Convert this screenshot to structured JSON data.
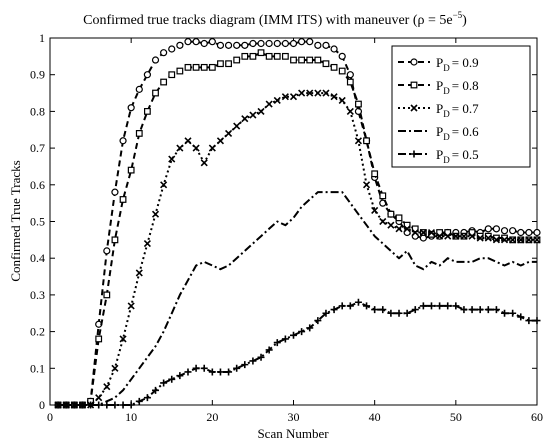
{
  "chart_data": {
    "type": "line",
    "title": "Confirmed true tracks diagram (IMM ITS) with maneuver (ρ = 5e",
    "title_superscript": "−5",
    "title_suffix": ")",
    "xlabel": "Scan Number",
    "ylabel": "Confirmed True Tracks",
    "xlim": [
      0,
      60
    ],
    "ylim": [
      0,
      1
    ],
    "xticks": [
      "0",
      "10",
      "20",
      "30",
      "40",
      "50",
      "60"
    ],
    "yticks": [
      "0",
      "0.1",
      "0.2",
      "0.3",
      "0.4",
      "0.5",
      "0.6",
      "0.7",
      "0.8",
      "0.9",
      "1"
    ],
    "grid": false,
    "legend_position": "top-right",
    "series": [
      {
        "name": "= 0.9",
        "name_prefix": "P",
        "name_sub": "D",
        "style": "dashed",
        "marker": "circle",
        "x": [
          1,
          2,
          3,
          4,
          5,
          6,
          7,
          8,
          9,
          10,
          11,
          12,
          13,
          14,
          15,
          16,
          17,
          18,
          19,
          20,
          21,
          22,
          23,
          24,
          25,
          26,
          27,
          28,
          29,
          30,
          31,
          32,
          33,
          34,
          35,
          36,
          37,
          38,
          39,
          40,
          41,
          42,
          43,
          44,
          45,
          46,
          47,
          48,
          49,
          50,
          51,
          52,
          53,
          54,
          55,
          56,
          57,
          58,
          59,
          60
        ],
        "y": [
          0,
          0,
          0,
          0,
          0.01,
          0.22,
          0.42,
          0.58,
          0.72,
          0.81,
          0.86,
          0.9,
          0.94,
          0.96,
          0.97,
          0.98,
          0.99,
          0.99,
          0.985,
          0.99,
          0.98,
          0.98,
          0.98,
          0.98,
          0.985,
          0.985,
          0.985,
          0.985,
          0.985,
          0.985,
          0.99,
          0.99,
          0.98,
          0.98,
          0.97,
          0.95,
          0.9,
          0.8,
          0.72,
          0.62,
          0.55,
          0.52,
          0.5,
          0.47,
          0.46,
          0.455,
          0.46,
          0.46,
          0.47,
          0.47,
          0.47,
          0.475,
          0.47,
          0.48,
          0.48,
          0.475,
          0.475,
          0.47,
          0.47,
          0.47
        ]
      },
      {
        "name": "= 0.8",
        "name_prefix": "P",
        "name_sub": "D",
        "style": "dashed",
        "marker": "square",
        "x": [
          1,
          2,
          3,
          4,
          5,
          6,
          7,
          8,
          9,
          10,
          11,
          12,
          13,
          14,
          15,
          16,
          17,
          18,
          19,
          20,
          21,
          22,
          23,
          24,
          25,
          26,
          27,
          28,
          29,
          30,
          31,
          32,
          33,
          34,
          35,
          36,
          37,
          38,
          39,
          40,
          41,
          42,
          43,
          44,
          45,
          46,
          47,
          48,
          49,
          50,
          51,
          52,
          53,
          54,
          55,
          56,
          57,
          58,
          59,
          60
        ],
        "y": [
          0,
          0,
          0,
          0,
          0.01,
          0.18,
          0.3,
          0.45,
          0.56,
          0.64,
          0.74,
          0.8,
          0.85,
          0.88,
          0.9,
          0.91,
          0.92,
          0.92,
          0.92,
          0.92,
          0.93,
          0.93,
          0.94,
          0.95,
          0.95,
          0.96,
          0.95,
          0.95,
          0.95,
          0.94,
          0.94,
          0.94,
          0.94,
          0.93,
          0.92,
          0.91,
          0.88,
          0.82,
          0.72,
          0.63,
          0.57,
          0.52,
          0.51,
          0.49,
          0.48,
          0.47,
          0.465,
          0.47,
          0.47,
          0.46,
          0.46,
          0.47,
          0.46,
          0.46,
          0.455,
          0.455,
          0.45,
          0.45,
          0.45,
          0.45
        ]
      },
      {
        "name": "= 0.7",
        "name_prefix": "P",
        "name_sub": "D",
        "style": "dotted",
        "marker": "x",
        "x": [
          1,
          2,
          3,
          4,
          5,
          6,
          7,
          8,
          9,
          10,
          11,
          12,
          13,
          14,
          15,
          16,
          17,
          18,
          19,
          20,
          21,
          22,
          23,
          24,
          25,
          26,
          27,
          28,
          29,
          30,
          31,
          32,
          33,
          34,
          35,
          36,
          37,
          38,
          39,
          40,
          41,
          42,
          43,
          44,
          45,
          46,
          47,
          48,
          49,
          50,
          51,
          52,
          53,
          54,
          55,
          56,
          57,
          58,
          59,
          60
        ],
        "y": [
          0,
          0,
          0,
          0,
          0,
          0.02,
          0.05,
          0.1,
          0.18,
          0.27,
          0.36,
          0.44,
          0.52,
          0.6,
          0.67,
          0.7,
          0.72,
          0.7,
          0.66,
          0.7,
          0.72,
          0.74,
          0.76,
          0.78,
          0.79,
          0.8,
          0.82,
          0.83,
          0.84,
          0.84,
          0.85,
          0.85,
          0.85,
          0.85,
          0.84,
          0.83,
          0.8,
          0.72,
          0.6,
          0.53,
          0.5,
          0.49,
          0.48,
          0.48,
          0.47,
          0.47,
          0.47,
          0.46,
          0.46,
          0.46,
          0.46,
          0.46,
          0.455,
          0.455,
          0.45,
          0.45,
          0.45,
          0.45,
          0.45,
          0.45
        ]
      },
      {
        "name": "= 0.6",
        "name_prefix": "P",
        "name_sub": "D",
        "style": "dash-dot",
        "marker": "none",
        "x": [
          1,
          2,
          3,
          4,
          5,
          6,
          7,
          8,
          9,
          10,
          11,
          12,
          13,
          14,
          15,
          16,
          17,
          18,
          19,
          20,
          21,
          22,
          23,
          24,
          25,
          26,
          27,
          28,
          29,
          30,
          31,
          32,
          33,
          34,
          35,
          36,
          37,
          38,
          39,
          40,
          41,
          42,
          43,
          44,
          45,
          46,
          47,
          48,
          49,
          50,
          51,
          52,
          53,
          54,
          55,
          56,
          57,
          58,
          59,
          60
        ],
        "y": [
          0,
          0,
          0,
          0,
          0,
          0,
          0.01,
          0.02,
          0.04,
          0.07,
          0.1,
          0.13,
          0.16,
          0.2,
          0.25,
          0.3,
          0.34,
          0.38,
          0.39,
          0.38,
          0.37,
          0.38,
          0.4,
          0.42,
          0.44,
          0.46,
          0.48,
          0.5,
          0.49,
          0.51,
          0.54,
          0.56,
          0.58,
          0.58,
          0.58,
          0.58,
          0.55,
          0.52,
          0.49,
          0.46,
          0.44,
          0.42,
          0.4,
          0.42,
          0.38,
          0.37,
          0.39,
          0.38,
          0.4,
          0.39,
          0.39,
          0.39,
          0.4,
          0.4,
          0.39,
          0.38,
          0.39,
          0.38,
          0.39,
          0.39
        ]
      },
      {
        "name": "= 0.5",
        "name_prefix": "P",
        "name_sub": "D",
        "style": "dash-dot",
        "marker": "plus",
        "x": [
          1,
          2,
          3,
          4,
          5,
          6,
          7,
          8,
          9,
          10,
          11,
          12,
          13,
          14,
          15,
          16,
          17,
          18,
          19,
          20,
          21,
          22,
          23,
          24,
          25,
          26,
          27,
          28,
          29,
          30,
          31,
          32,
          33,
          34,
          35,
          36,
          37,
          38,
          39,
          40,
          41,
          42,
          43,
          44,
          45,
          46,
          47,
          48,
          49,
          50,
          51,
          52,
          53,
          54,
          55,
          56,
          57,
          58,
          59,
          60
        ],
        "y": [
          0,
          0,
          0,
          0,
          0,
          0,
          0,
          0,
          0,
          0,
          0.01,
          0.02,
          0.04,
          0.06,
          0.07,
          0.08,
          0.09,
          0.1,
          0.1,
          0.09,
          0.09,
          0.09,
          0.1,
          0.11,
          0.12,
          0.13,
          0.15,
          0.17,
          0.18,
          0.19,
          0.2,
          0.21,
          0.23,
          0.25,
          0.26,
          0.27,
          0.27,
          0.28,
          0.27,
          0.26,
          0.26,
          0.25,
          0.25,
          0.25,
          0.26,
          0.27,
          0.27,
          0.27,
          0.27,
          0.27,
          0.26,
          0.26,
          0.26,
          0.26,
          0.26,
          0.25,
          0.25,
          0.24,
          0.23,
          0.23
        ]
      }
    ]
  }
}
